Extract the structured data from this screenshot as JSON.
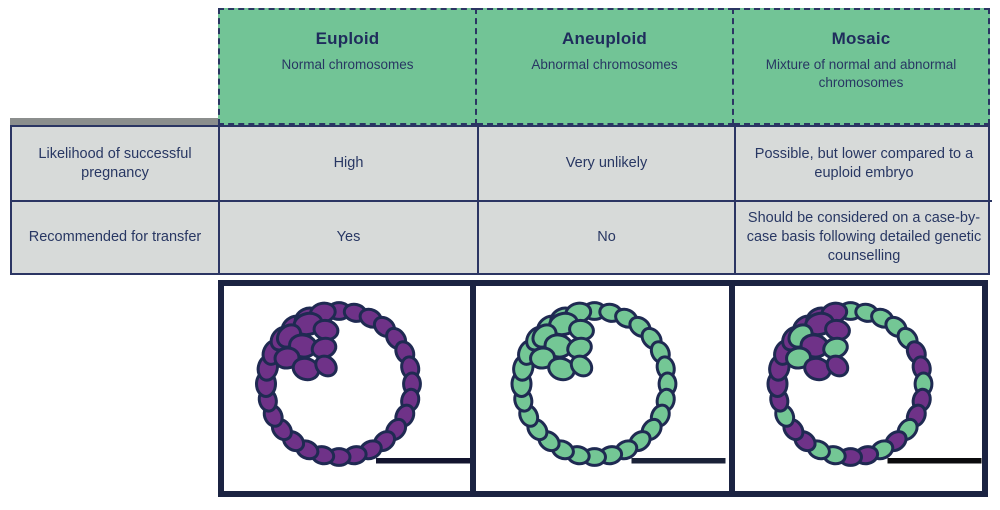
{
  "colors": {
    "header_green": "#72c496",
    "row_gray": "#d7dad9",
    "border_navy": "#2b3563",
    "box_border_navy": "#1b2342",
    "text_navy": "#283763",
    "title_navy": "#1f2c5c",
    "cell_purple": "#6f3288",
    "cell_green": "#74c795",
    "cell_outline": "#1f2a52"
  },
  "table": {
    "columns": [
      {
        "id": "euploid",
        "title": "Euploid",
        "subtitle": "Normal chromosomes"
      },
      {
        "id": "aneuploid",
        "title": "Aneuploid",
        "subtitle": "Abnormal chromosomes"
      },
      {
        "id": "mosaic",
        "title": "Mosaic",
        "subtitle": "Mixture of normal and abnormal chromosomes"
      }
    ],
    "rows": [
      {
        "label": "Likelihood of successful pregnancy",
        "values": [
          "High",
          "Very unlikely",
          "Possible, but lower compared to a euploid embryo"
        ]
      },
      {
        "label": "Recommended for transfer",
        "values": [
          "Yes",
          "No",
          "Should be considered on a case-by-case basis following detailed genetic counselling"
        ]
      }
    ]
  },
  "embryos": [
    {
      "name": "euploid-embryo",
      "ring_cells": [
        "P",
        "P",
        "P",
        "P",
        "P",
        "P",
        "P",
        "P",
        "P",
        "P",
        "P",
        "P",
        "P",
        "P",
        "P",
        "P",
        "P",
        "P",
        "P",
        "P",
        "P",
        "P",
        "P",
        "P",
        "P",
        "P",
        "P",
        "P"
      ],
      "icm_cells": [
        "P",
        "P",
        "P",
        "P",
        "P",
        "P",
        "P",
        "P"
      ],
      "artifact_line_color": "#12142e"
    },
    {
      "name": "aneuploid-embryo",
      "ring_cells": [
        "G",
        "G",
        "G",
        "G",
        "G",
        "G",
        "G",
        "G",
        "G",
        "G",
        "G",
        "G",
        "G",
        "G",
        "G",
        "G",
        "G",
        "G",
        "G",
        "G",
        "G",
        "G",
        "G",
        "G",
        "G",
        "G",
        "G",
        "G"
      ],
      "icm_cells": [
        "G",
        "G",
        "G",
        "G",
        "G",
        "G",
        "G",
        "G"
      ],
      "artifact_line_color": "#1a2238"
    },
    {
      "name": "mosaic-embryo",
      "ring_cells": [
        "G",
        "G",
        "G",
        "G",
        "G",
        "P",
        "P",
        "G",
        "P",
        "P",
        "G",
        "P",
        "G",
        "P",
        "P",
        "G",
        "G",
        "P",
        "P",
        "G",
        "P",
        "P",
        "P",
        "P",
        "P",
        "P",
        "P",
        "P"
      ],
      "icm_cells": [
        "P",
        "G",
        "P",
        "P",
        "G",
        "G",
        "P",
        "P"
      ],
      "artifact_line_color": "#0b0b0d"
    }
  ]
}
